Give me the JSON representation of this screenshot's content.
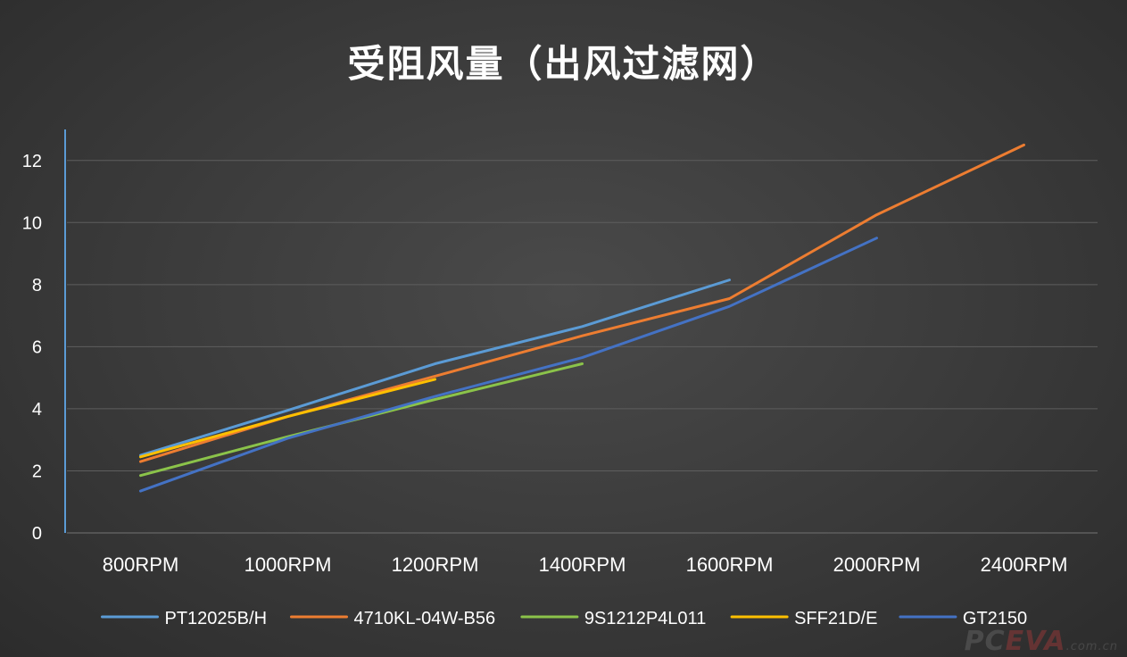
{
  "chart_data": {
    "type": "line",
    "title": "受阻风量（出风过滤网）",
    "categories": [
      "800RPM",
      "1000RPM",
      "1200RPM",
      "1400RPM",
      "1600RPM",
      "2000RPM",
      "2400RPM"
    ],
    "ylim": [
      0,
      13
    ],
    "yticks": [
      0,
      2,
      4,
      6,
      8,
      10,
      12
    ],
    "grid": true,
    "legend_position": "bottom",
    "series": [
      {
        "name": "PT12025B/H",
        "color": "#5b9bd5",
        "values": [
          2.5,
          3.95,
          5.45,
          6.65,
          8.15,
          null,
          null
        ]
      },
      {
        "name": "4710KL-04W-B56",
        "color": "#ed7d31",
        "values": [
          2.3,
          3.75,
          5.05,
          6.35,
          7.55,
          10.25,
          12.5
        ]
      },
      {
        "name": "9S1212P4L011",
        "color": "#8bc34a",
        "values": [
          1.85,
          3.1,
          4.3,
          5.45,
          null,
          null,
          null
        ]
      },
      {
        "name": "SFF21D/E",
        "color": "#ffc000",
        "values": [
          2.45,
          3.75,
          4.95,
          null,
          null,
          null,
          null
        ]
      },
      {
        "name": "GT2150",
        "color": "#4472c4",
        "values": [
          1.35,
          3.05,
          4.4,
          5.65,
          7.3,
          9.5,
          null
        ]
      }
    ]
  },
  "watermark": {
    "part1": "PC",
    "part2": "EVA",
    "part3": ".com.cn"
  },
  "style": {
    "grid_color": "#5e5e5e",
    "axis_color": "#5b9bd5",
    "text_color": "#ffffff"
  }
}
